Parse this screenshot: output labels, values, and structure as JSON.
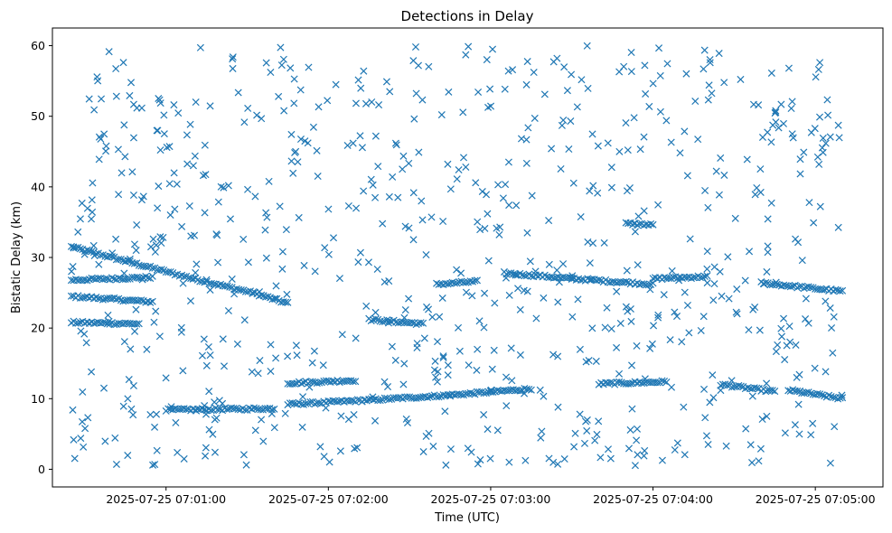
{
  "chart_data": {
    "type": "scatter",
    "title": "Detections in Delay",
    "xlabel": "Time (UTC)",
    "ylabel": "Bistatic Delay (km)",
    "marker": "x",
    "color": "#1f77b4",
    "grid": false,
    "legend": "none",
    "x_start": "2025-07-25 07:00:25",
    "x_end": "2025-07-25 07:05:10",
    "xlim": [
      "2025-07-25 07:00:18",
      "2025-07-25 07:05:25"
    ],
    "ylim": [
      -2.5,
      62.5
    ],
    "xticks": [
      "2025-07-25 07:01:00",
      "2025-07-25 07:02:00",
      "2025-07-25 07:03:00",
      "2025-07-25 07:04:00",
      "2025-07-25 07:05:00"
    ],
    "yticks": [
      0,
      10,
      20,
      30,
      40,
      50,
      60
    ],
    "tracks": [
      {
        "x": [
          "2025-07-25 07:00:25",
          "2025-07-25 07:00:45",
          "2025-07-25 07:01:10",
          "2025-07-25 07:01:32",
          "2025-07-25 07:01:45"
        ],
        "y": [
          31.5,
          29.5,
          27.0,
          25.0,
          23.5
        ]
      },
      {
        "x": [
          "2025-07-25 07:00:25",
          "2025-07-25 07:00:55"
        ],
        "y": [
          24.5,
          23.7
        ]
      },
      {
        "x": [
          "2025-07-25 07:00:25",
          "2025-07-25 07:00:55"
        ],
        "y": [
          26.8,
          27.2
        ]
      },
      {
        "x": [
          "2025-07-25 07:00:25",
          "2025-07-25 07:00:50"
        ],
        "y": [
          20.8,
          20.6
        ]
      },
      {
        "x": [
          "2025-07-25 07:01:45",
          "2025-07-25 07:02:15",
          "2025-07-25 07:02:45",
          "2025-07-25 07:03:15"
        ],
        "y": [
          9.2,
          9.8,
          10.5,
          11.4
        ]
      },
      {
        "x": [
          "2025-07-25 07:01:00",
          "2025-07-25 07:01:40"
        ],
        "y": [
          8.4,
          8.6
        ]
      },
      {
        "x": [
          "2025-07-25 07:01:45",
          "2025-07-25 07:02:10"
        ],
        "y": [
          12.2,
          12.6
        ]
      },
      {
        "x": [
          "2025-07-25 07:02:15",
          "2025-07-25 07:02:35"
        ],
        "y": [
          21.2,
          20.6
        ]
      },
      {
        "x": [
          "2025-07-25 07:02:40",
          "2025-07-25 07:02:55"
        ],
        "y": [
          26.2,
          26.6
        ]
      },
      {
        "x": [
          "2025-07-25 07:03:05",
          "2025-07-25 07:03:30",
          "2025-07-25 07:04:00"
        ],
        "y": [
          27.8,
          27.0,
          26.2
        ]
      },
      {
        "x": [
          "2025-07-25 07:04:00",
          "2025-07-25 07:04:20"
        ],
        "y": [
          27.0,
          27.3
        ]
      },
      {
        "x": [
          "2025-07-25 07:03:50",
          "2025-07-25 07:04:00"
        ],
        "y": [
          34.8,
          34.6
        ]
      },
      {
        "x": [
          "2025-07-25 07:03:40",
          "2025-07-25 07:04:05"
        ],
        "y": [
          12.1,
          12.4
        ]
      },
      {
        "x": [
          "2025-07-25 07:04:25",
          "2025-07-25 07:04:45"
        ],
        "y": [
          12.0,
          11.0
        ]
      },
      {
        "x": [
          "2025-07-25 07:04:50",
          "2025-07-25 07:05:10"
        ],
        "y": [
          11.2,
          10.0
        ]
      },
      {
        "x": [
          "2025-07-25 07:04:40",
          "2025-07-25 07:05:10"
        ],
        "y": [
          26.4,
          25.2
        ]
      }
    ],
    "noise_y_range": [
      0.5,
      60
    ],
    "noise_count": 760
  }
}
